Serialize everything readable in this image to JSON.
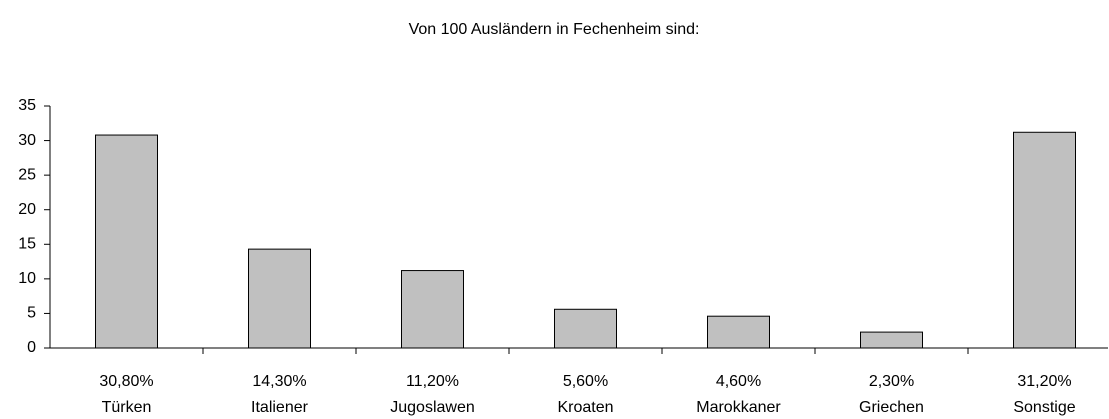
{
  "chart_data": {
    "type": "bar",
    "title": "Von 100 Ausländern in Fechenheim sind:",
    "categories": [
      "Türken",
      "Italiener",
      "Jugoslawen",
      "Kroaten",
      "Marokkaner",
      "Griechen",
      "Sonstige"
    ],
    "values": [
      30.8,
      14.3,
      11.2,
      5.6,
      4.6,
      2.3,
      31.2
    ],
    "value_labels": [
      "30,80%",
      "14,30%",
      "11,20%",
      "5,60%",
      "4,60%",
      "2,30%",
      "31,20%"
    ],
    "color": "#c0c0c0",
    "ylim": [
      0,
      35
    ],
    "yticks": [
      0,
      5,
      10,
      15,
      20,
      25,
      30,
      35
    ],
    "grid": false
  }
}
